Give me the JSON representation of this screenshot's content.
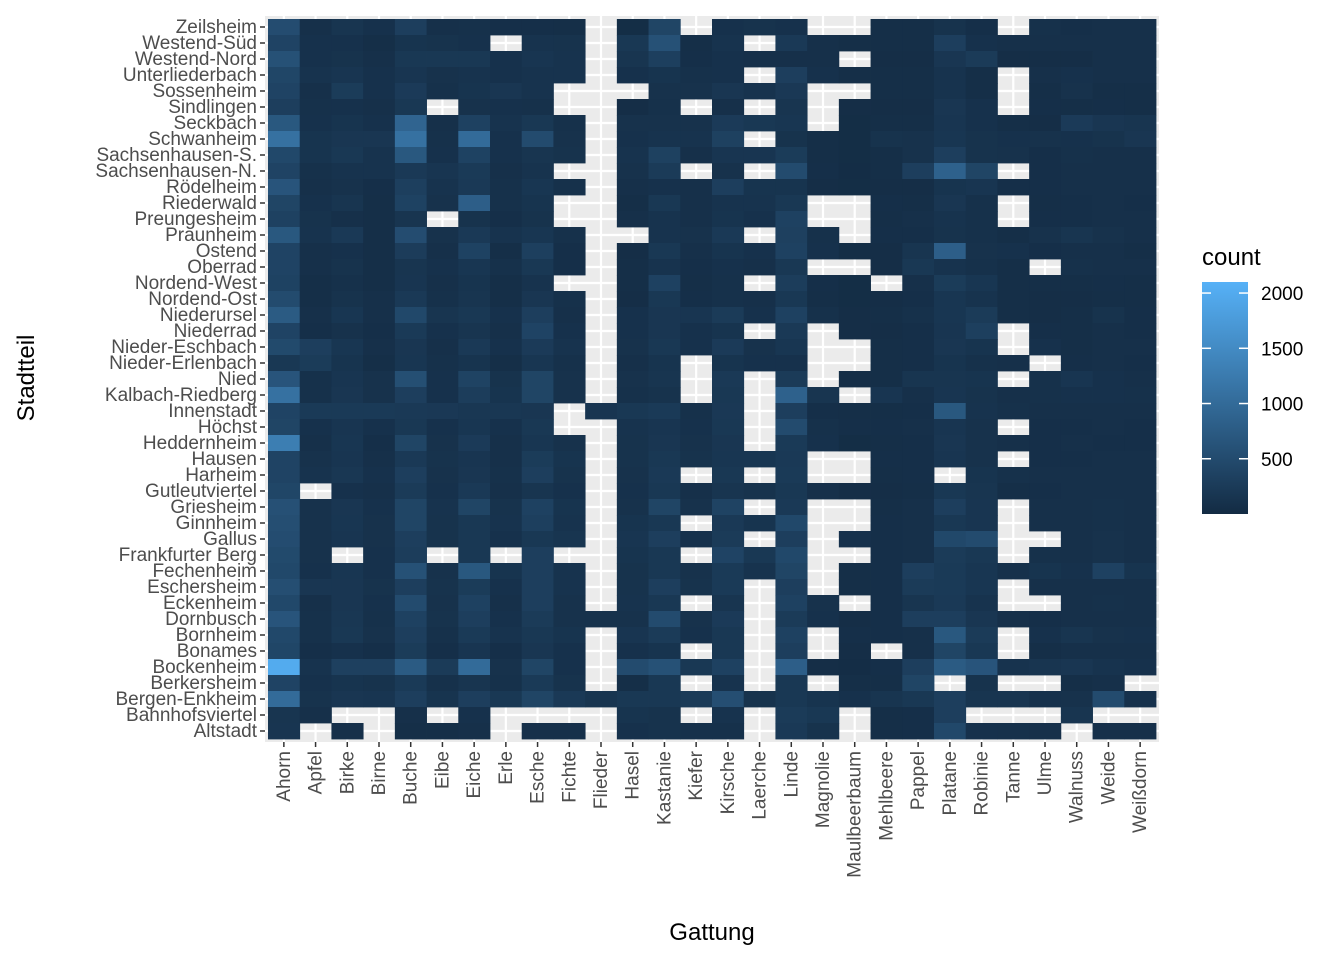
{
  "chart_data": {
    "type": "heatmap",
    "title": "",
    "xlabel": "Gattung",
    "ylabel": "Stadtteil",
    "legend": {
      "title": "count",
      "ticks": [
        500,
        1000,
        1500,
        2000
      ],
      "range": [
        0,
        2100
      ],
      "low_color": "#132B43",
      "high_color": "#56B1F7",
      "position": "right"
    },
    "panel_background": "#EBEBEB",
    "grid": true,
    "x_categories": [
      "Ahorn",
      "Apfel",
      "Birke",
      "Birne",
      "Buche",
      "Eibe",
      "Eiche",
      "Erle",
      "Esche",
      "Fichte",
      "Flieder",
      "Hasel",
      "Kastanie",
      "Kiefer",
      "Kirsche",
      "Laerche",
      "Linde",
      "Magnolie",
      "Maulbeerbaum",
      "Mehlbeere",
      "Pappel",
      "Platane",
      "Robinie",
      "Tanne",
      "Ulme",
      "Walnuss",
      "Weide",
      "Weißdorn"
    ],
    "y_categories": [
      "Zeilsheim",
      "Westend-Süd",
      "Westend-Nord",
      "Unterliederbach",
      "Sossenheim",
      "Sindlingen",
      "Seckbach",
      "Schwanheim",
      "Sachsenhausen-S.",
      "Sachsenhausen-N.",
      "Rödelheim",
      "Riederwald",
      "Preungesheim",
      "Praunheim",
      "Ostend",
      "Oberrad",
      "Nordend-West",
      "Nordend-Ost",
      "Niederursel",
      "Niederrad",
      "Nieder-Eschbach",
      "Nieder-Erlenbach",
      "Nied",
      "Kalbach-Riedberg",
      "Innenstadt",
      "Höchst",
      "Heddernheim",
      "Hausen",
      "Harheim",
      "Gutleutviertel",
      "Griesheim",
      "Ginnheim",
      "Gallus",
      "Frankfurter Berg",
      "Fechenheim",
      "Eschersheim",
      "Eckenheim",
      "Dornbusch",
      "Bornheim",
      "Bonames",
      "Bockenheim",
      "Berkersheim",
      "Bergen-Enkheim",
      "Bahnhofsviertel",
      "Altstadt"
    ],
    "values": [
      [
        520,
        80,
        150,
        100,
        300,
        80,
        90,
        70,
        70,
        60,
        null,
        40,
        400,
        null,
        100,
        120,
        100,
        null,
        null,
        60,
        60,
        120,
        70,
        null,
        90,
        70,
        80,
        80
      ],
      [
        380,
        100,
        100,
        60,
        140,
        120,
        100,
        null,
        130,
        120,
        null,
        200,
        600,
        60,
        130,
        null,
        220,
        80,
        60,
        60,
        60,
        300,
        100,
        80,
        80,
        80,
        80,
        80
      ],
      [
        600,
        100,
        120,
        80,
        200,
        200,
        200,
        100,
        160,
        130,
        null,
        150,
        320,
        70,
        100,
        80,
        80,
        80,
        null,
        50,
        50,
        180,
        250,
        50,
        50,
        50,
        80,
        80
      ],
      [
        420,
        130,
        160,
        100,
        160,
        110,
        130,
        100,
        130,
        130,
        null,
        100,
        140,
        90,
        100,
        null,
        300,
        100,
        60,
        60,
        60,
        130,
        60,
        null,
        80,
        100,
        80,
        80
      ],
      [
        380,
        80,
        260,
        100,
        240,
        90,
        140,
        180,
        130,
        null,
        null,
        null,
        110,
        110,
        180,
        130,
        210,
        null,
        null,
        60,
        60,
        130,
        60,
        null,
        60,
        110,
        60,
        60
      ],
      [
        300,
        90,
        100,
        80,
        200,
        null,
        110,
        100,
        90,
        null,
        null,
        50,
        90,
        null,
        80,
        null,
        150,
        null,
        50,
        50,
        50,
        180,
        100,
        null,
        70,
        60,
        70,
        60
      ],
      [
        700,
        100,
        140,
        100,
        900,
        80,
        350,
        130,
        200,
        90,
        null,
        110,
        110,
        110,
        240,
        200,
        170,
        null,
        40,
        60,
        60,
        160,
        100,
        60,
        50,
        240,
        180,
        150
      ],
      [
        1100,
        140,
        180,
        180,
        1100,
        90,
        1000,
        100,
        500,
        110,
        null,
        100,
        130,
        130,
        340,
        null,
        120,
        60,
        40,
        120,
        110,
        170,
        120,
        100,
        110,
        100,
        120,
        180
      ],
      [
        450,
        140,
        200,
        130,
        700,
        100,
        360,
        100,
        150,
        120,
        null,
        130,
        340,
        80,
        160,
        160,
        260,
        60,
        40,
        60,
        110,
        300,
        120,
        110,
        70,
        90,
        80,
        80
      ],
      [
        380,
        90,
        130,
        130,
        220,
        160,
        230,
        80,
        130,
        null,
        null,
        110,
        250,
        null,
        110,
        null,
        500,
        70,
        30,
        60,
        300,
        850,
        400,
        null,
        70,
        80,
        80,
        80
      ],
      [
        650,
        80,
        110,
        70,
        320,
        130,
        220,
        90,
        170,
        90,
        null,
        80,
        100,
        80,
        300,
        140,
        140,
        50,
        40,
        50,
        50,
        140,
        160,
        70,
        70,
        80,
        80,
        80
      ],
      [
        400,
        100,
        150,
        60,
        360,
        110,
        800,
        90,
        140,
        null,
        null,
        60,
        200,
        80,
        130,
        130,
        200,
        null,
        null,
        70,
        60,
        180,
        90,
        null,
        60,
        70,
        80,
        70
      ],
      [
        350,
        120,
        80,
        60,
        150,
        null,
        120,
        70,
        120,
        null,
        null,
        80,
        130,
        80,
        140,
        100,
        350,
        null,
        null,
        60,
        80,
        130,
        90,
        null,
        70,
        70,
        80,
        80
      ],
      [
        700,
        130,
        220,
        60,
        520,
        110,
        220,
        130,
        170,
        90,
        null,
        null,
        130,
        110,
        220,
        null,
        330,
        90,
        null,
        70,
        70,
        120,
        90,
        60,
        110,
        150,
        110,
        80
      ],
      [
        380,
        80,
        100,
        60,
        270,
        80,
        360,
        60,
        320,
        70,
        null,
        50,
        200,
        80,
        140,
        100,
        350,
        100,
        40,
        50,
        150,
        800,
        110,
        100,
        70,
        80,
        80,
        60
      ],
      [
        380,
        80,
        120,
        60,
        150,
        100,
        170,
        90,
        200,
        70,
        null,
        60,
        130,
        70,
        100,
        80,
        200,
        null,
        null,
        50,
        200,
        130,
        90,
        60,
        null,
        90,
        80,
        80
      ],
      [
        360,
        60,
        90,
        60,
        160,
        80,
        140,
        60,
        130,
        null,
        null,
        60,
        350,
        60,
        90,
        null,
        280,
        70,
        40,
        null,
        80,
        260,
        170,
        60,
        60,
        60,
        70,
        60
      ],
      [
        500,
        60,
        120,
        80,
        220,
        90,
        150,
        60,
        180,
        90,
        null,
        50,
        200,
        70,
        90,
        80,
        200,
        60,
        40,
        50,
        70,
        170,
        130,
        60,
        50,
        50,
        60,
        60
      ],
      [
        750,
        80,
        170,
        80,
        450,
        150,
        200,
        100,
        300,
        80,
        null,
        100,
        180,
        160,
        250,
        100,
        350,
        90,
        50,
        60,
        90,
        170,
        250,
        60,
        50,
        60,
        120,
        70
      ],
      [
        380,
        70,
        110,
        70,
        230,
        100,
        150,
        80,
        380,
        100,
        null,
        100,
        180,
        100,
        140,
        null,
        220,
        null,
        50,
        50,
        70,
        160,
        310,
        null,
        70,
        60,
        80,
        70
      ],
      [
        480,
        300,
        170,
        80,
        180,
        80,
        220,
        100,
        240,
        130,
        null,
        110,
        200,
        100,
        240,
        110,
        170,
        null,
        null,
        60,
        70,
        180,
        140,
        null,
        100,
        60,
        80,
        80
      ],
      [
        200,
        260,
        140,
        60,
        170,
        90,
        140,
        60,
        170,
        90,
        null,
        80,
        140,
        null,
        140,
        100,
        100,
        null,
        null,
        60,
        70,
        140,
        90,
        80,
        null,
        70,
        80,
        70
      ],
      [
        650,
        90,
        160,
        110,
        560,
        100,
        370,
        120,
        400,
        110,
        null,
        110,
        150,
        null,
        220,
        null,
        250,
        null,
        50,
        60,
        150,
        150,
        140,
        null,
        90,
        160,
        100,
        80
      ],
      [
        1100,
        90,
        180,
        110,
        300,
        100,
        280,
        140,
        400,
        110,
        null,
        90,
        120,
        null,
        200,
        null,
        850,
        150,
        null,
        160,
        80,
        160,
        120,
        80,
        90,
        100,
        100,
        90
      ],
      [
        380,
        230,
        230,
        230,
        220,
        210,
        190,
        190,
        180,
        null,
        160,
        200,
        230,
        90,
        210,
        null,
        300,
        70,
        60,
        60,
        70,
        700,
        130,
        90,
        80,
        80,
        80,
        80
      ],
      [
        400,
        100,
        160,
        100,
        200,
        100,
        170,
        100,
        200,
        null,
        null,
        130,
        160,
        100,
        200,
        null,
        500,
        90,
        70,
        70,
        80,
        160,
        110,
        null,
        70,
        70,
        80,
        70
      ],
      [
        1300,
        80,
        170,
        70,
        400,
        110,
        240,
        80,
        170,
        110,
        null,
        120,
        180,
        110,
        180,
        null,
        230,
        100,
        40,
        60,
        70,
        180,
        110,
        80,
        70,
        80,
        70,
        70
      ],
      [
        380,
        110,
        160,
        80,
        220,
        120,
        160,
        80,
        260,
        140,
        null,
        120,
        200,
        120,
        170,
        170,
        220,
        null,
        null,
        70,
        70,
        160,
        110,
        null,
        70,
        70,
        80,
        80
      ],
      [
        380,
        130,
        190,
        100,
        300,
        110,
        180,
        90,
        300,
        120,
        null,
        110,
        220,
        null,
        200,
        null,
        230,
        null,
        null,
        60,
        70,
        null,
        140,
        90,
        80,
        80,
        80,
        80
      ],
      [
        420,
        null,
        100,
        80,
        250,
        100,
        220,
        80,
        150,
        100,
        null,
        100,
        200,
        80,
        150,
        120,
        200,
        80,
        50,
        50,
        60,
        200,
        150,
        60,
        70,
        80,
        80,
        80
      ],
      [
        580,
        110,
        180,
        100,
        400,
        130,
        400,
        120,
        350,
        140,
        null,
        110,
        400,
        110,
        370,
        null,
        220,
        null,
        null,
        60,
        80,
        300,
        160,
        null,
        80,
        80,
        90,
        80
      ],
      [
        550,
        110,
        170,
        110,
        400,
        120,
        200,
        130,
        320,
        130,
        null,
        140,
        200,
        null,
        220,
        140,
        450,
        null,
        null,
        70,
        80,
        200,
        160,
        null,
        80,
        80,
        90,
        80
      ],
      [
        520,
        110,
        160,
        110,
        300,
        120,
        200,
        100,
        200,
        150,
        null,
        160,
        300,
        100,
        250,
        null,
        300,
        null,
        100,
        70,
        80,
        450,
        500,
        null,
        null,
        80,
        110,
        80
      ],
      [
        480,
        110,
        null,
        100,
        280,
        null,
        200,
        null,
        300,
        null,
        null,
        140,
        200,
        null,
        380,
        200,
        450,
        null,
        null,
        70,
        80,
        250,
        200,
        null,
        90,
        80,
        110,
        80
      ],
      [
        450,
        100,
        170,
        100,
        600,
        110,
        700,
        140,
        300,
        130,
        null,
        120,
        200,
        110,
        230,
        130,
        400,
        null,
        60,
        70,
        300,
        230,
        170,
        90,
        140,
        100,
        350,
        140
      ],
      [
        550,
        180,
        180,
        120,
        300,
        120,
        260,
        100,
        300,
        130,
        null,
        120,
        300,
        120,
        230,
        null,
        300,
        null,
        60,
        70,
        250,
        230,
        170,
        null,
        80,
        80,
        80,
        80
      ],
      [
        450,
        80,
        180,
        100,
        500,
        110,
        350,
        80,
        300,
        110,
        null,
        130,
        200,
        null,
        150,
        null,
        350,
        110,
        null,
        70,
        150,
        220,
        130,
        null,
        null,
        80,
        90,
        80
      ],
      [
        650,
        90,
        190,
        90,
        350,
        120,
        300,
        100,
        250,
        110,
        110,
        110,
        500,
        110,
        240,
        null,
        250,
        100,
        50,
        70,
        300,
        300,
        180,
        80,
        70,
        80,
        80,
        80
      ],
      [
        450,
        90,
        200,
        110,
        300,
        90,
        230,
        130,
        200,
        140,
        null,
        160,
        250,
        100,
        200,
        null,
        350,
        null,
        70,
        70,
        80,
        700,
        250,
        null,
        100,
        150,
        110,
        100
      ],
      [
        420,
        70,
        100,
        70,
        260,
        70,
        160,
        70,
        180,
        100,
        null,
        100,
        140,
        null,
        200,
        null,
        300,
        null,
        50,
        null,
        80,
        400,
        200,
        null,
        60,
        80,
        80,
        80
      ],
      [
        2000,
        130,
        330,
        330,
        750,
        250,
        1000,
        110,
        400,
        100,
        null,
        500,
        600,
        200,
        350,
        null,
        800,
        50,
        30,
        70,
        300,
        750,
        650,
        130,
        150,
        180,
        130,
        100
      ],
      [
        380,
        100,
        140,
        120,
        230,
        90,
        150,
        90,
        230,
        120,
        null,
        60,
        200,
        null,
        130,
        null,
        200,
        null,
        60,
        60,
        400,
        null,
        120,
        null,
        null,
        60,
        80,
        null
      ],
      [
        1000,
        120,
        180,
        160,
        300,
        140,
        300,
        200,
        400,
        220,
        150,
        200,
        200,
        250,
        550,
        120,
        200,
        140,
        100,
        150,
        200,
        300,
        150,
        150,
        100,
        110,
        500,
        100
      ],
      [
        150,
        80,
        null,
        null,
        80,
        null,
        100,
        null,
        null,
        null,
        null,
        140,
        120,
        null,
        130,
        null,
        250,
        200,
        null,
        60,
        70,
        300,
        null,
        null,
        null,
        150,
        null,
        null
      ],
      [
        160,
        null,
        80,
        null,
        60,
        60,
        80,
        null,
        80,
        80,
        null,
        100,
        120,
        90,
        90,
        null,
        220,
        120,
        null,
        60,
        70,
        450,
        100,
        90,
        80,
        null,
        80,
        80
      ]
    ]
  }
}
